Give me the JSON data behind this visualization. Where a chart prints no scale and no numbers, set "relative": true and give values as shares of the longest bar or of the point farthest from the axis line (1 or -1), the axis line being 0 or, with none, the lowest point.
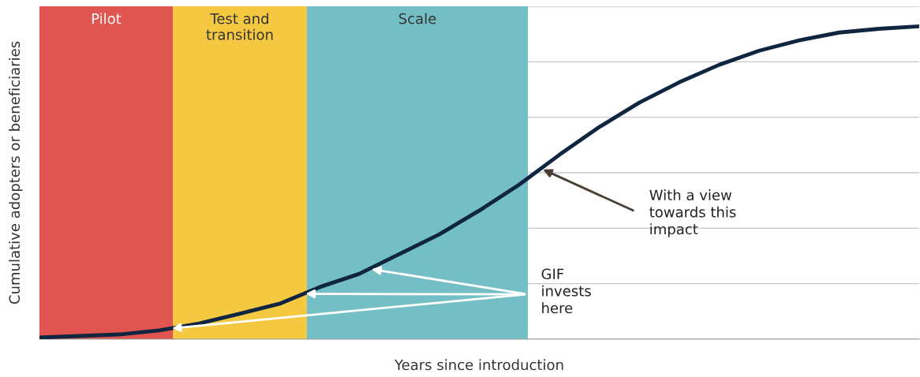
{
  "chart_data": {
    "type": "line",
    "relative": true,
    "grid": "y",
    "categories": [
      null,
      null,
      null,
      null,
      null,
      null,
      null,
      null,
      null,
      null,
      null,
      null,
      null,
      null,
      null,
      null,
      null,
      null,
      null,
      null,
      null,
      null,
      null
    ],
    "series": [
      {
        "color": "#0f2540",
        "values": [
          0.005,
          0.01,
          0.015,
          0.028,
          0.05,
          0.081,
          0.113,
          0.166,
          0.209,
          0.272,
          0.335,
          0.411,
          0.494,
          0.589,
          0.678,
          0.756,
          0.821,
          0.877,
          0.922,
          0.955,
          0.98,
          0.992,
          1
        ]
      }
    ],
    "xlabel": "Years since introduction",
    "ylabel": "Cumulative adopters or beneficiaries",
    "annotations": [
      "Pilot",
      "Test and\ntransition",
      "Scale",
      "With a view\ntowards this\nimpact",
      "GIF\ninvests\nhere"
    ]
  }
}
